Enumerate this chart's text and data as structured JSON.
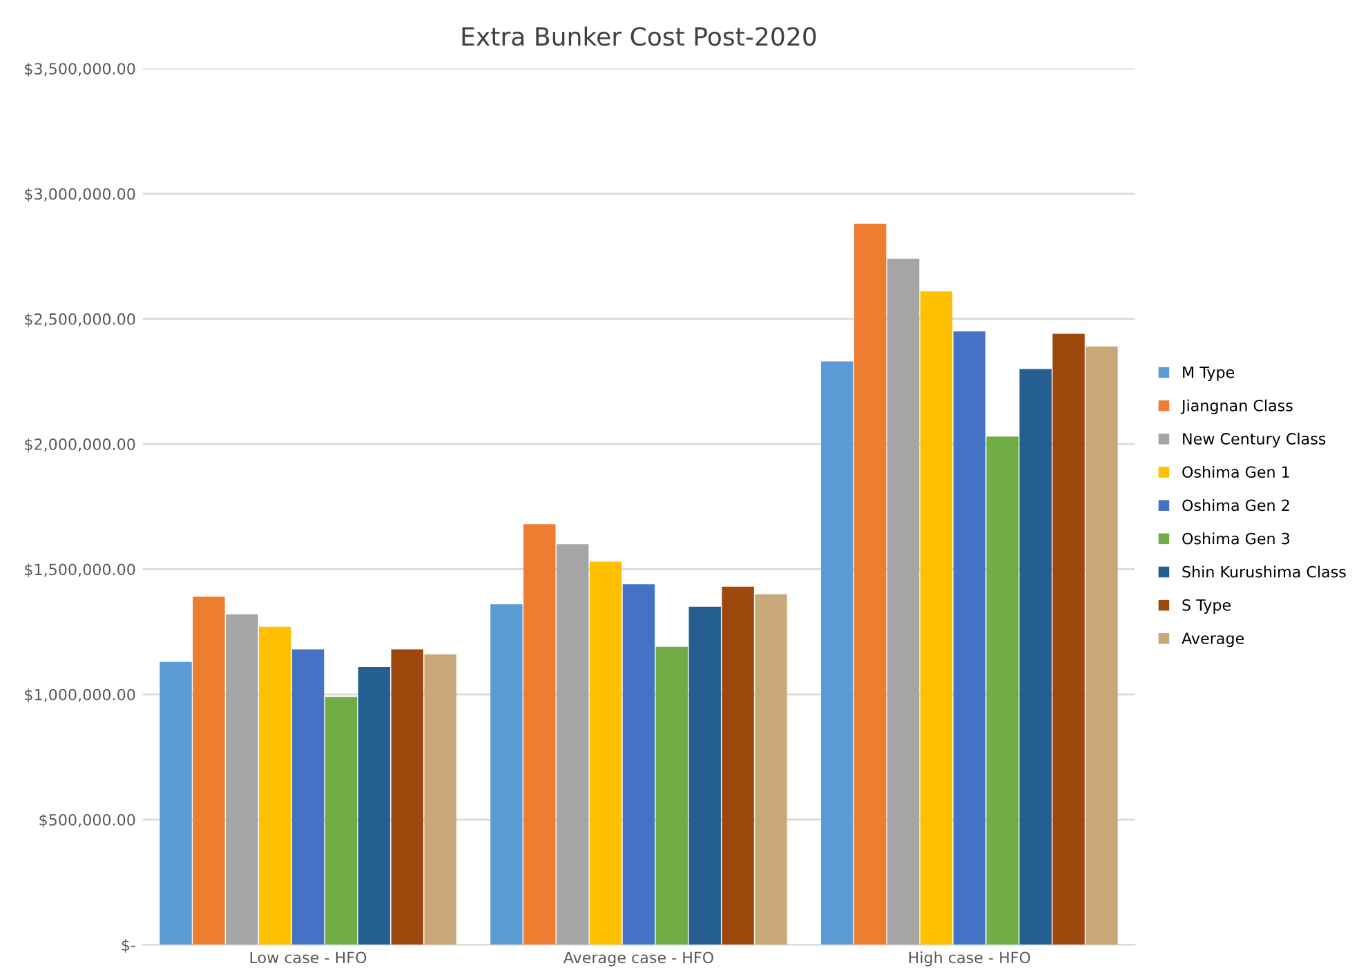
{
  "chart_data": {
    "type": "bar",
    "title": "Extra Bunker Cost Post-2020",
    "categories": [
      "Low case - HFO",
      "Average case - HFO",
      "High case - HFO"
    ],
    "series": [
      {
        "name": "M Type",
        "color": "#5b9bd5",
        "values": [
          1130000,
          1360000,
          2330000
        ]
      },
      {
        "name": "Jiangnan Class",
        "color": "#ed7d31",
        "values": [
          1390000,
          1680000,
          2880000
        ]
      },
      {
        "name": "New Century Class",
        "color": "#a5a5a5",
        "values": [
          1320000,
          1600000,
          2740000
        ]
      },
      {
        "name": "Oshima Gen 1",
        "color": "#ffc000",
        "values": [
          1270000,
          1530000,
          2610000
        ]
      },
      {
        "name": "Oshima Gen 2",
        "color": "#4472c4",
        "values": [
          1180000,
          1440000,
          2450000
        ]
      },
      {
        "name": "Oshima Gen 3",
        "color": "#70ad47",
        "values": [
          990000,
          1190000,
          2030000
        ]
      },
      {
        "name": "Shin Kurushima Class",
        "color": "#255e91",
        "values": [
          1110000,
          1350000,
          2300000
        ]
      },
      {
        "name": "S Type",
        "color": "#9e480e",
        "values": [
          1180000,
          1430000,
          2440000
        ]
      },
      {
        "name": "Average",
        "color": "#c8a878",
        "values": [
          1160000,
          1400000,
          2390000
        ]
      }
    ],
    "ylim": [
      0,
      3500000
    ],
    "yticks": [
      {
        "value": 0,
        "label": "$-"
      },
      {
        "value": 500000,
        "label": "$500,000.00"
      },
      {
        "value": 1000000,
        "label": "$1,000,000.00"
      },
      {
        "value": 1500000,
        "label": "$1,500,000.00"
      },
      {
        "value": 2000000,
        "label": "$2,000,000.00"
      },
      {
        "value": 2500000,
        "label": "$2,500,000.00"
      },
      {
        "value": 3000000,
        "label": "$3,000,000.00"
      },
      {
        "value": 3500000,
        "label": "$3,500,000.00"
      }
    ],
    "grid": "y",
    "legend": "right"
  }
}
